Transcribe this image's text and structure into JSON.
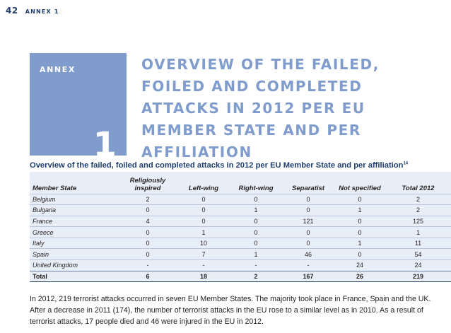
{
  "header": {
    "page_number": "42",
    "running_head": "ANNEX 1"
  },
  "annex_box": {
    "label": "ANNEX",
    "number": "1",
    "color": "#7f9ccc"
  },
  "title": "OVERVIEW OF THE FAILED, FOILED AND COMPLETED ATTACKS IN 2012 PER EU MEMBER STATE AND PER AFFILIATION",
  "table": {
    "caption": "Overview of the failed, foiled and completed attacks in 2012 per EU Member State and per affiliation",
    "footnote_ref": "14",
    "columns": [
      "Member State",
      "Religiously inspired",
      "Left-wing",
      "Right-wing",
      "Separatist",
      "Not specified",
      "Total 2012"
    ],
    "rows": [
      [
        "Belgium",
        "2",
        "0",
        "0",
        "0",
        "0",
        "2"
      ],
      [
        "Bulgaria",
        "0",
        "0",
        "1",
        "0",
        "1",
        "2"
      ],
      [
        "France",
        "4",
        "0",
        "0",
        "121",
        "0",
        "125"
      ],
      [
        "Greece",
        "0",
        "1",
        "0",
        "0",
        "0",
        "1"
      ],
      [
        "Italy",
        "0",
        "10",
        "0",
        "0",
        "1",
        "11"
      ],
      [
        "Spain",
        "0",
        "7",
        "1",
        "46",
        "0",
        "54"
      ],
      [
        "United Kingdom",
        "-",
        "-",
        "-",
        "-",
        "24",
        "24"
      ]
    ],
    "total": [
      "Total",
      "6",
      "18",
      "2",
      "167",
      "26",
      "219"
    ]
  },
  "body_text": "In 2012, 219 terrorist attacks occurred in seven EU Member States. The majority took place in France, Spain and the UK. After a decrease in 2011 (174), the number of terrorist attacks in the EU rose to a similar level as in 2010. As a result of terrorist attacks, 17 people died and 46 were injured in the EU in 2012."
}
